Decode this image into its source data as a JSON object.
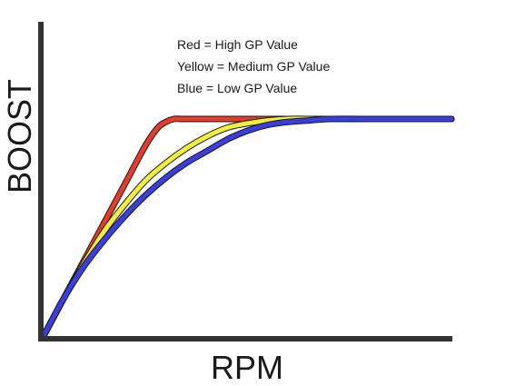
{
  "chart_data": {
    "type": "line",
    "xlabel": "RPM",
    "ylabel": "BOOST",
    "annotations": [
      "Red = High GP Value",
      "Yellow = Medium GP Value",
      "Blue = Low GP Value"
    ],
    "ticks": "none",
    "grid": false,
    "xlim": [
      0,
      100
    ],
    "ylim": [
      0,
      100
    ],
    "series": [
      {
        "color": "#e53b2b",
        "x": [
          0,
          5,
          10,
          15,
          20,
          25,
          28,
          30,
          32,
          34,
          36,
          40,
          45,
          60,
          80,
          100
        ],
        "y": [
          0,
          13,
          26,
          39,
          52,
          65,
          71,
          73,
          74,
          74,
          74,
          74,
          74,
          74,
          74,
          74
        ]
      },
      {
        "color": "#f2ee3a",
        "x": [
          0,
          5,
          10,
          15,
          20,
          25,
          30,
          35,
          40,
          45,
          50,
          55,
          60,
          65,
          80,
          100
        ],
        "y": [
          0,
          13,
          25,
          36,
          45,
          53,
          59,
          64,
          68,
          71,
          72.5,
          73.5,
          74,
          74,
          74,
          74
        ]
      },
      {
        "color": "#3a3de0",
        "x": [
          0,
          5,
          10,
          15,
          20,
          25,
          30,
          35,
          40,
          45,
          50,
          55,
          60,
          65,
          70,
          80,
          100
        ],
        "y": [
          0,
          13,
          24,
          33,
          41,
          48,
          54,
          59,
          63,
          67,
          70,
          72,
          73,
          73.5,
          74,
          74,
          74
        ]
      }
    ]
  }
}
